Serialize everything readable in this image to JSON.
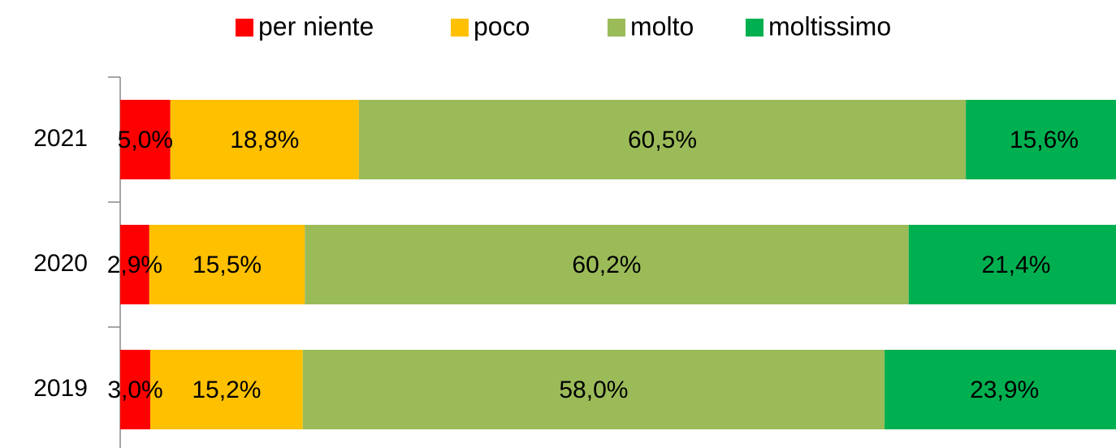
{
  "chart_data": {
    "type": "stacked_barh",
    "categories": [
      "2021",
      "2020",
      "2019"
    ],
    "series": [
      {
        "name": "per niente",
        "color": "#ff0000",
        "values": [
          5.0,
          2.9,
          3.0
        ],
        "value_labels": [
          "5,0%",
          "2,9%",
          "3,0%"
        ]
      },
      {
        "name": "poco",
        "color": "#ffc000",
        "values": [
          18.8,
          15.5,
          15.2
        ],
        "value_labels": [
          "18,8%",
          "15,5%",
          "15,2%"
        ]
      },
      {
        "name": "molto",
        "color": "#9bbb59",
        "values": [
          60.5,
          60.2,
          58.0
        ],
        "value_labels": [
          "60,5%",
          "60,2%",
          "58,0%"
        ]
      },
      {
        "name": "moltissimo",
        "color": "#00b050",
        "values": [
          15.6,
          21.4,
          23.9
        ],
        "value_labels": [
          "15,6%",
          "21,4%",
          "23,9%"
        ]
      }
    ],
    "legend": "top"
  }
}
